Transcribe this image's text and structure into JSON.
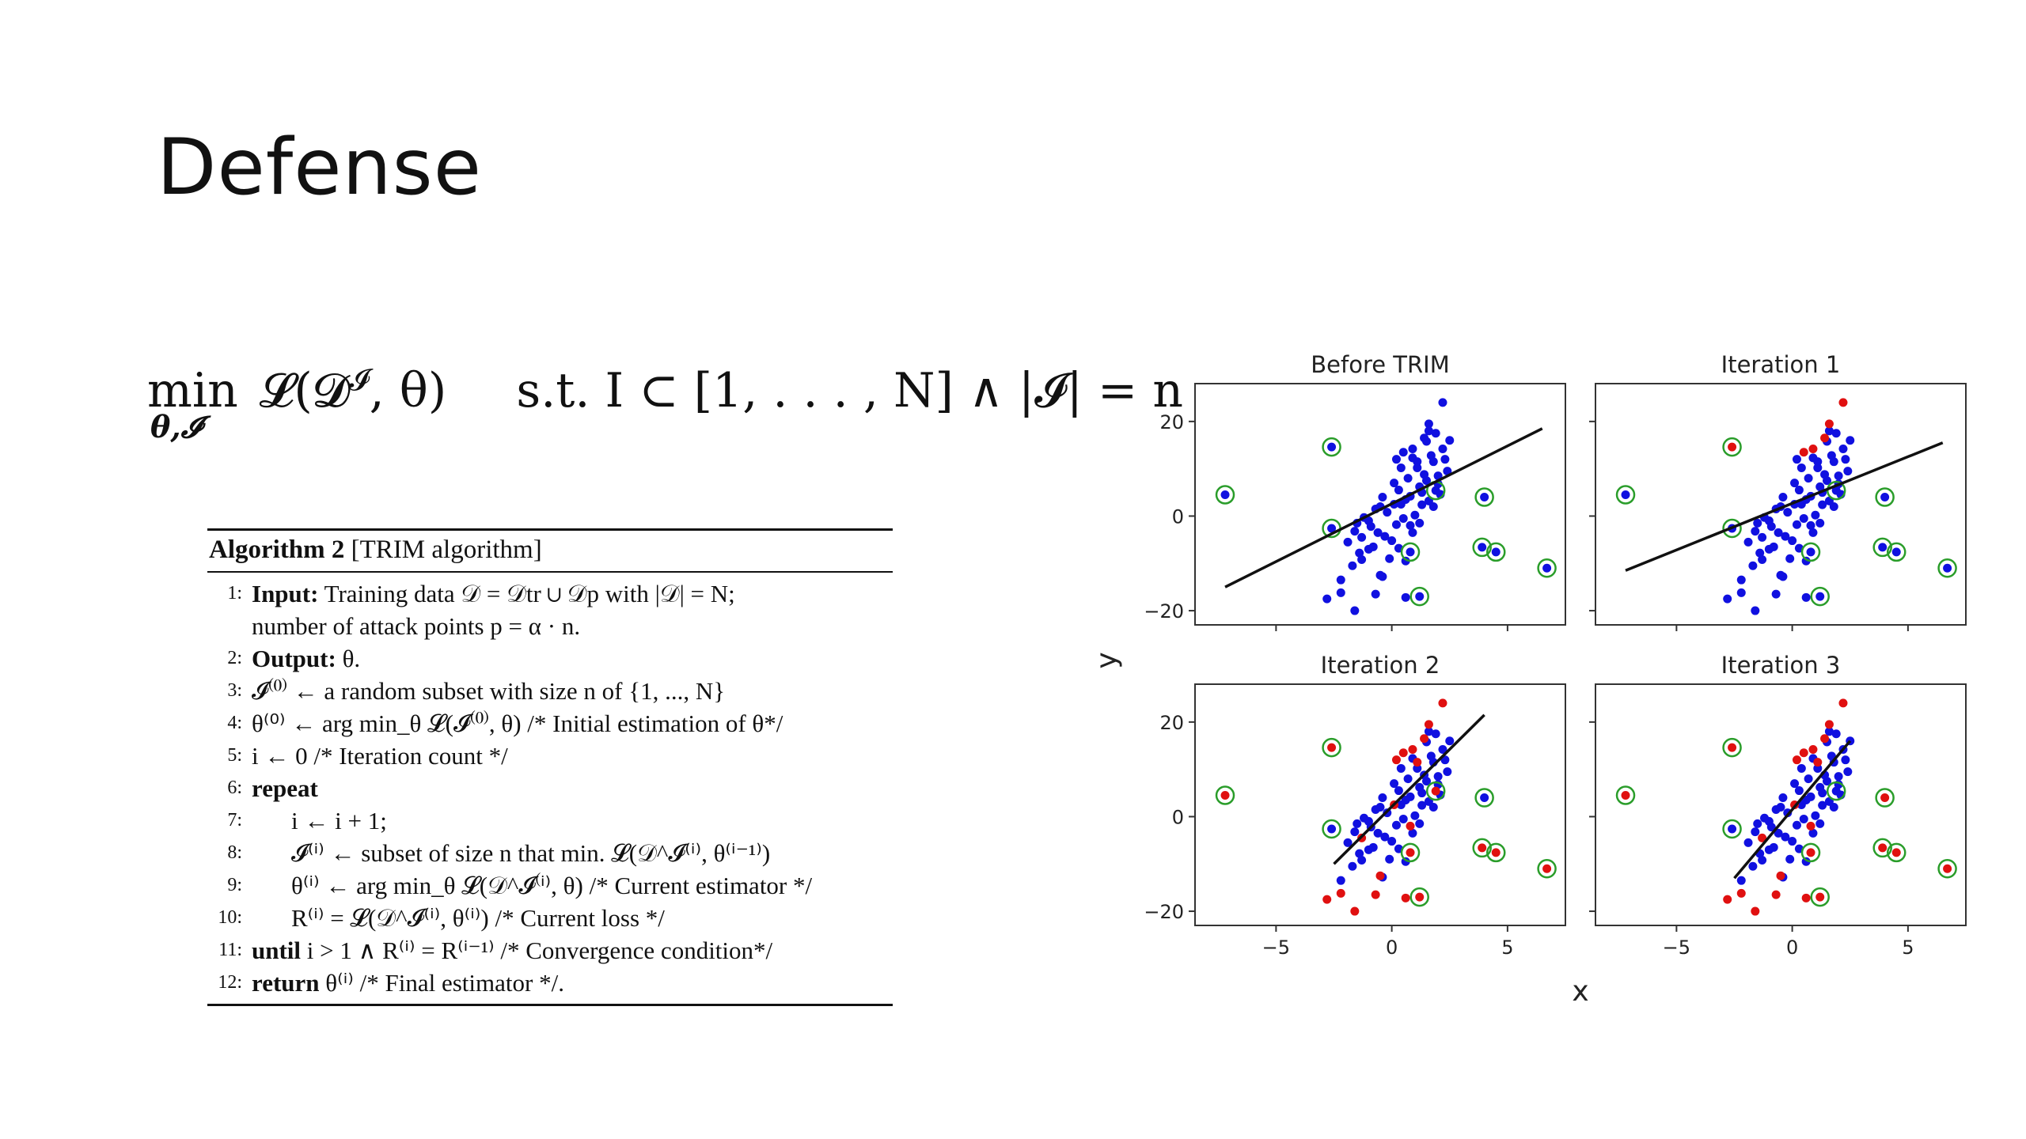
{
  "slide": {
    "title": "Defense"
  },
  "formula": {
    "min_label": "min",
    "min_sub": "θ,𝓘",
    "objective": "𝓛(𝓓",
    "objective_sup": "𝓘",
    "objective_end": ", θ)",
    "constraint": "s.t.  I ⊂ [1, . . . , N] ∧ |𝓘| = n ."
  },
  "algorithm": {
    "header_bold": "Algorithm 2",
    "header_rest": " [TRIM algorithm]",
    "lines": [
      {
        "num": "1:",
        "text": "Input: Training data 𝒟 = 𝒟tr ∪ 𝒟p with |𝒟| = N;"
      },
      {
        "num": "",
        "text": "number of attack points p = α · n."
      },
      {
        "num": "2:",
        "text": "Output: θ."
      },
      {
        "num": "3:",
        "text": "𝓘⁽⁰⁾ ← a random subset with size n of {1, ..., N}"
      },
      {
        "num": "4:",
        "text": "θ⁽⁰⁾ ← arg min_θ 𝓛(𝓘⁽⁰⁾, θ) /* Initial estimation of θ*/"
      },
      {
        "num": "5:",
        "text": "i ← 0 /* Iteration count */"
      },
      {
        "num": "6:",
        "text": "repeat"
      },
      {
        "num": "7:",
        "text": "i ← i + 1;"
      },
      {
        "num": "8:",
        "text": "𝓘⁽ⁱ⁾ ← subset of size n that min. 𝓛(𝒟^𝓘⁽ⁱ⁾, θ⁽ⁱ⁻¹⁾)"
      },
      {
        "num": "9:",
        "text": "θ⁽ⁱ⁾ ← arg min_θ 𝓛(𝒟^𝓘⁽ⁱ⁾, θ) /* Current estimator */"
      },
      {
        "num": "10:",
        "text": "R⁽ⁱ⁾ = 𝓛(𝒟^𝓘⁽ⁱ⁾, θ⁽ⁱ⁾) /* Current loss */"
      },
      {
        "num": "11:",
        "text": "until i > 1 ∧ R⁽ⁱ⁾ = R⁽ⁱ⁻¹⁾ /* Convergence condition*/"
      },
      {
        "num": "12:",
        "text": "return θ⁽ⁱ⁾ /* Final estimator */."
      }
    ]
  },
  "chart_data": {
    "type": "scatter",
    "xlabel": "x",
    "ylabel": "y",
    "xlim": [
      -8.5,
      7.5
    ],
    "ylim": [
      -23,
      28
    ],
    "xticks": [
      -5,
      0,
      5
    ],
    "yticks": [
      -20,
      0,
      20
    ],
    "panels": [
      {
        "title": "Before TRIM",
        "line": {
          "x0": -7.2,
          "y0": -15,
          "x1": 6.5,
          "y1": 18.5
        }
      },
      {
        "title": "Iteration 1",
        "line": {
          "x0": -7.2,
          "y0": -11.5,
          "x1": 6.5,
          "y1": 15.5
        }
      },
      {
        "title": "Iteration 2",
        "line": {
          "x0": -2.5,
          "y0": -10,
          "x1": 4.0,
          "y1": 21.5
        }
      },
      {
        "title": "Iteration 3",
        "line": {
          "x0": -2.5,
          "y0": -13,
          "x1": 2.5,
          "y1": 16
        }
      }
    ],
    "circled_points": [
      {
        "x": -7.2,
        "y": 4.5
      },
      {
        "x": -2.6,
        "y": 14.6
      },
      {
        "x": -2.6,
        "y": -2.6
      },
      {
        "x": 1.9,
        "y": 5.4
      },
      {
        "x": 4.0,
        "y": 4.0
      },
      {
        "x": 0.8,
        "y": -7.6
      },
      {
        "x": 1.2,
        "y": -17.0
      },
      {
        "x": 3.9,
        "y": -6.6
      },
      {
        "x": 4.5,
        "y": -7.6
      },
      {
        "x": 6.7,
        "y": -11.0
      }
    ],
    "circled_red_in_panel": {
      "0": [],
      "1": [
        1
      ],
      "2": [
        0,
        1,
        3,
        5,
        6,
        7,
        8,
        9
      ],
      "3": [
        0,
        1,
        4,
        5,
        6,
        7,
        8,
        9
      ]
    },
    "red_points": [
      {
        "x": 0.5,
        "y": 13.5
      },
      {
        "x": 0.9,
        "y": 14.2
      },
      {
        "x": 1.4,
        "y": 16.5
      },
      {
        "x": 1.6,
        "y": 19.5
      },
      {
        "x": 2.2,
        "y": 24.0
      },
      {
        "x": 0.2,
        "y": 12.0
      },
      {
        "x": 1.1,
        "y": 11.5
      },
      {
        "x": -2.8,
        "y": -17.5
      },
      {
        "x": -2.2,
        "y": -16.2
      },
      {
        "x": -1.6,
        "y": -20.0
      },
      {
        "x": -0.7,
        "y": -16.5
      },
      {
        "x": 0.6,
        "y": -17.2
      },
      {
        "x": -0.5,
        "y": -12.5
      },
      {
        "x": 0.8,
        "y": -2.0
      },
      {
        "x": -1.3,
        "y": -4.5
      },
      {
        "x": 0.1,
        "y": 2.5
      }
    ],
    "blue_points": [
      {
        "x": -1.9,
        "y": -5.5
      },
      {
        "x": -1.6,
        "y": -3.2
      },
      {
        "x": -1.3,
        "y": -9.2
      },
      {
        "x": -1.0,
        "y": -1.0
      },
      {
        "x": -0.8,
        "y": -6.5
      },
      {
        "x": -0.6,
        "y": -3.5
      },
      {
        "x": -0.4,
        "y": -12.8
      },
      {
        "x": -0.2,
        "y": 0.8
      },
      {
        "x": 0.0,
        "y": -5.2
      },
      {
        "x": 0.2,
        "y": -1.8
      },
      {
        "x": 0.4,
        "y": 2.5
      },
      {
        "x": 0.6,
        "y": -9.5
      },
      {
        "x": 0.8,
        "y": 4.2
      },
      {
        "x": 1.0,
        "y": 0.2
      },
      {
        "x": 1.2,
        "y": 6.2
      },
      {
        "x": 1.4,
        "y": 8.8
      },
      {
        "x": 1.6,
        "y": 3.2
      },
      {
        "x": 1.8,
        "y": 11.5
      },
      {
        "x": 2.0,
        "y": 6.8
      },
      {
        "x": 2.2,
        "y": 14.2
      },
      {
        "x": 2.4,
        "y": 9.5
      },
      {
        "x": -1.4,
        "y": -7.8
      },
      {
        "x": -0.5,
        "y": 2.0
      },
      {
        "x": 0.3,
        "y": 5.5
      },
      {
        "x": 0.9,
        "y": -3.5
      },
      {
        "x": 1.3,
        "y": 2.4
      },
      {
        "x": 1.7,
        "y": 12.8
      },
      {
        "x": 2.1,
        "y": 4.6
      },
      {
        "x": -0.1,
        "y": -9.0
      },
      {
        "x": 0.7,
        "y": 8.0
      },
      {
        "x": 1.5,
        "y": 15.8
      },
      {
        "x": -0.9,
        "y": -2.2
      },
      {
        "x": 0.5,
        "y": -0.5
      },
      {
        "x": 1.1,
        "y": 10.2
      },
      {
        "x": 1.9,
        "y": 17.5
      },
      {
        "x": -1.7,
        "y": -10.5
      },
      {
        "x": -0.3,
        "y": -4.3
      },
      {
        "x": 0.6,
        "y": 3.5
      },
      {
        "x": 1.3,
        "y": 5.0
      },
      {
        "x": 2.0,
        "y": 8.5
      },
      {
        "x": -2.2,
        "y": -13.5
      },
      {
        "x": -1.2,
        "y": -0.3
      },
      {
        "x": 0.1,
        "y": 7.0
      },
      {
        "x": 0.9,
        "y": 12.3
      },
      {
        "x": 1.6,
        "y": 18.0
      },
      {
        "x": -0.7,
        "y": 1.5
      },
      {
        "x": 1.8,
        "y": 2.0
      },
      {
        "x": 2.3,
        "y": 12.0
      },
      {
        "x": -1.0,
        "y": -7.0
      },
      {
        "x": 0.3,
        "y": -6.8
      },
      {
        "x": 1.2,
        "y": -1.5
      },
      {
        "x": 0.4,
        "y": 10.2
      },
      {
        "x": -1.5,
        "y": -1.5
      },
      {
        "x": 1.5,
        "y": 7.5
      },
      {
        "x": 2.5,
        "y": 16.0
      },
      {
        "x": -0.4,
        "y": 4.0
      }
    ],
    "red_count_in_panel": {
      "0": 0,
      "1": 5,
      "2": 16,
      "3": 16
    }
  }
}
